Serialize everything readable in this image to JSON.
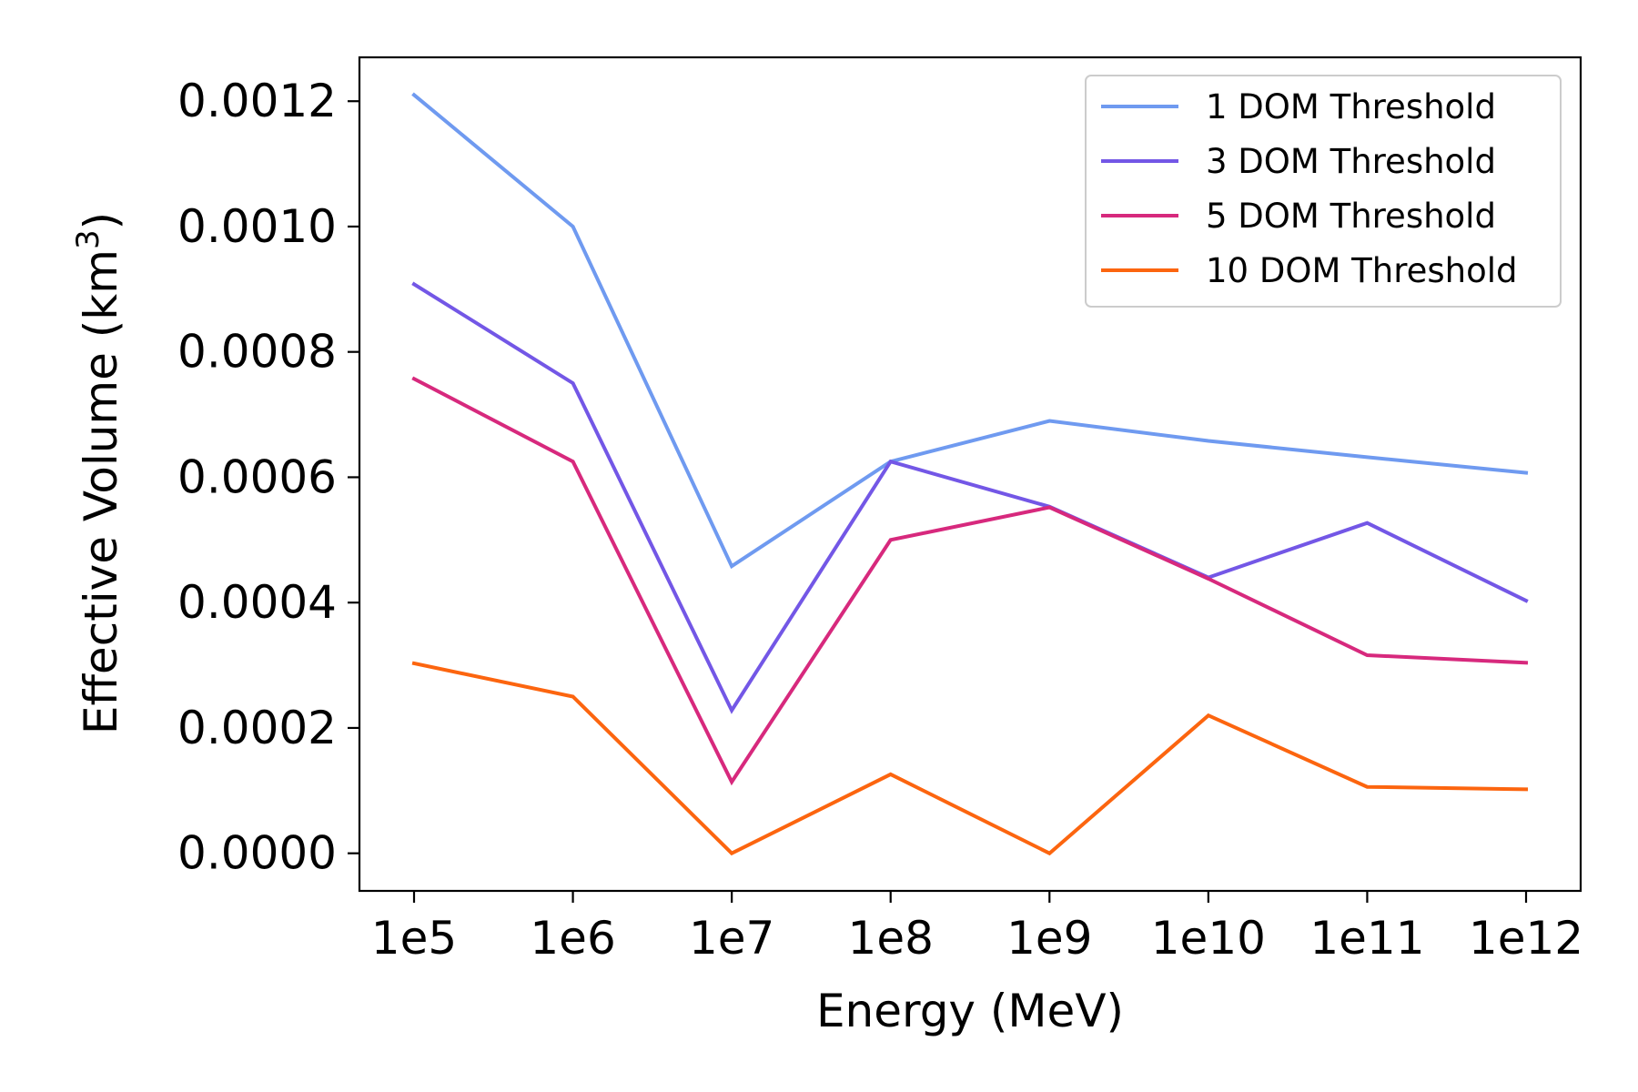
{
  "chart_data": {
    "type": "line",
    "xlabel": "Energy (MeV)",
    "ylabel_main": "Effective Volume (km",
    "ylabel_sup": "3",
    "ylabel_end": ")",
    "categories": [
      "1e5",
      "1e6",
      "1e7",
      "1e8",
      "1e9",
      "1e10",
      "1e11",
      "1e12"
    ],
    "ylim": [
      -6e-05,
      0.00127
    ],
    "yticks": [
      0.0,
      0.0002,
      0.0004,
      0.0006,
      0.0008,
      0.001,
      0.0012
    ],
    "ytick_labels": [
      "0.0000",
      "0.0002",
      "0.0004",
      "0.0006",
      "0.0008",
      "0.0010",
      "0.0012"
    ],
    "grid": false,
    "legend_position": "top-right",
    "series": [
      {
        "name": "1 DOM Threshold",
        "color": "#6f9af0",
        "values": [
          0.00121,
          0.001,
          0.000458,
          0.000625,
          0.00069,
          0.000658,
          0.000632,
          0.000607
        ]
      },
      {
        "name": "3 DOM Threshold",
        "color": "#7357e6",
        "values": [
          0.000908,
          0.00075,
          0.000228,
          0.000625,
          0.000553,
          0.00044,
          0.000527,
          0.000403
        ]
      },
      {
        "name": "5 DOM Threshold",
        "color": "#d7297d",
        "values": [
          0.000757,
          0.000625,
          0.000114,
          0.0005,
          0.000552,
          0.000438,
          0.000316,
          0.000304
        ]
      },
      {
        "name": "10 DOM Threshold",
        "color": "#fc650f",
        "values": [
          0.000303,
          0.00025,
          0.0,
          0.000126,
          0.0,
          0.00022,
          0.000106,
          0.000102
        ]
      }
    ]
  }
}
